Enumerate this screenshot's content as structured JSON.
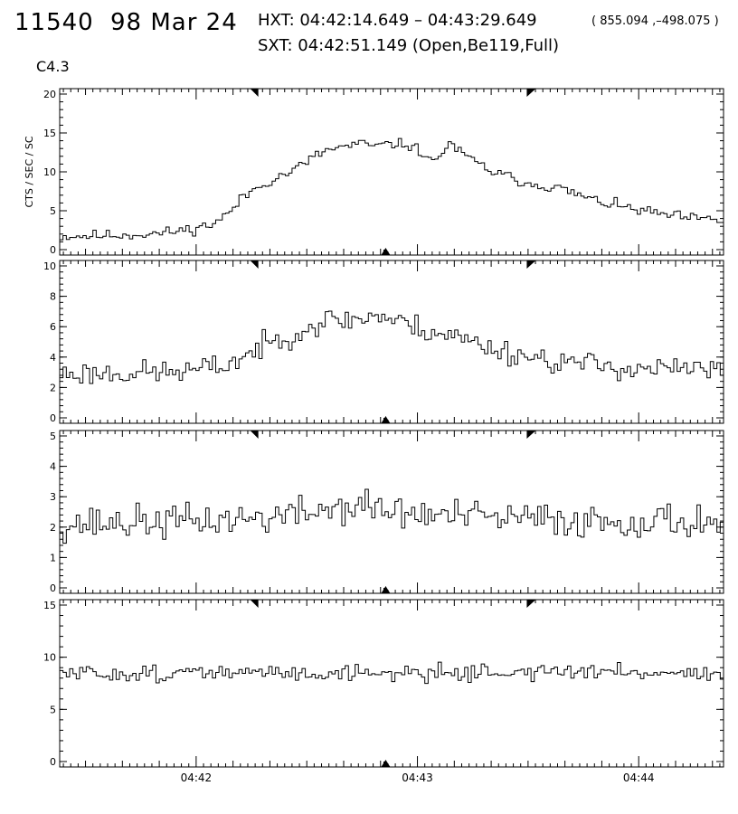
{
  "header": {
    "event_id": "11540",
    "date": "98 Mar 24",
    "hxt": "HXT: 04:42:14.649 – 04:43:29.649",
    "coords": "( 855.094 ,–498.075 )",
    "sxt": "SXT: 04:42:51.149 (Open,Be119,Full)",
    "goes_class": "C4.3"
  },
  "chart_data": {
    "type": "line",
    "title": "",
    "ylabel": "CTS / SEC / SC",
    "x_range": [
      "04:41:23",
      "04:44:23"
    ],
    "x_ticks": [
      "04:42",
      "04:43",
      "04:44"
    ],
    "hxt_interval": [
      "04:42:14.649",
      "04:43:29.649"
    ],
    "sxt_time": "04:42:51.149",
    "panels": [
      {
        "name": "panel-1",
        "ylim": [
          0,
          20
        ],
        "yticks": [
          0,
          5,
          10,
          15,
          20
        ],
        "anchors": [
          [
            0,
            1.7
          ],
          [
            10,
            1.8
          ],
          [
            20,
            1.9
          ],
          [
            30,
            2.1
          ],
          [
            40,
            2.7
          ],
          [
            45,
            3.2
          ],
          [
            50,
            4.5
          ],
          [
            55,
            6.8
          ],
          [
            60,
            8.3
          ],
          [
            70,
            10.2
          ],
          [
            75,
            11.6
          ],
          [
            80,
            12.8
          ],
          [
            90,
            13.6
          ],
          [
            95,
            13.3
          ],
          [
            100,
            13.6
          ],
          [
            105,
            13.4
          ],
          [
            110,
            12.2
          ],
          [
            112,
            11.0
          ],
          [
            117,
            13.8
          ],
          [
            120,
            12.5
          ],
          [
            125,
            11.2
          ],
          [
            130,
            10.0
          ],
          [
            140,
            8.6
          ],
          [
            150,
            7.9
          ],
          [
            160,
            6.4
          ],
          [
            170,
            5.4
          ],
          [
            180,
            4.6
          ],
          [
            190,
            4.0
          ],
          [
            200,
            3.7
          ]
        ],
        "noise": 0.35,
        "seed": 11
      },
      {
        "name": "panel-2",
        "ylim": [
          0,
          10
        ],
        "yticks": [
          0,
          2,
          4,
          6,
          8,
          10
        ],
        "anchors": [
          [
            0,
            2.9
          ],
          [
            30,
            3.0
          ],
          [
            40,
            3.1
          ],
          [
            50,
            3.5
          ],
          [
            60,
            4.6
          ],
          [
            70,
            5.6
          ],
          [
            80,
            6.4
          ],
          [
            90,
            6.5
          ],
          [
            95,
            6.8
          ],
          [
            100,
            6.4
          ],
          [
            110,
            5.8
          ],
          [
            120,
            5.3
          ],
          [
            125,
            4.9
          ],
          [
            135,
            4.3
          ],
          [
            150,
            3.7
          ],
          [
            170,
            3.3
          ],
          [
            200,
            3.1
          ]
        ],
        "noise": 0.4,
        "seed": 23
      },
      {
        "name": "panel-3",
        "ylim": [
          0,
          5
        ],
        "yticks": [
          0,
          1,
          2,
          3,
          4,
          5
        ],
        "anchors": [
          [
            0,
            2.1
          ],
          [
            40,
            2.2
          ],
          [
            60,
            2.3
          ],
          [
            70,
            2.4
          ],
          [
            80,
            2.6
          ],
          [
            90,
            2.7
          ],
          [
            100,
            2.5
          ],
          [
            110,
            2.4
          ],
          [
            130,
            2.3
          ],
          [
            160,
            2.2
          ],
          [
            200,
            2.2
          ]
        ],
        "noise": 0.28,
        "seed": 37
      },
      {
        "name": "panel-4",
        "ylim": [
          0,
          15
        ],
        "yticks": [
          0,
          5,
          10,
          15
        ],
        "anchors": [
          [
            0,
            8.4
          ],
          [
            50,
            8.5
          ],
          [
            100,
            8.5
          ],
          [
            150,
            8.6
          ],
          [
            200,
            8.5
          ]
        ],
        "noise": 0.4,
        "seed": 51
      }
    ]
  }
}
